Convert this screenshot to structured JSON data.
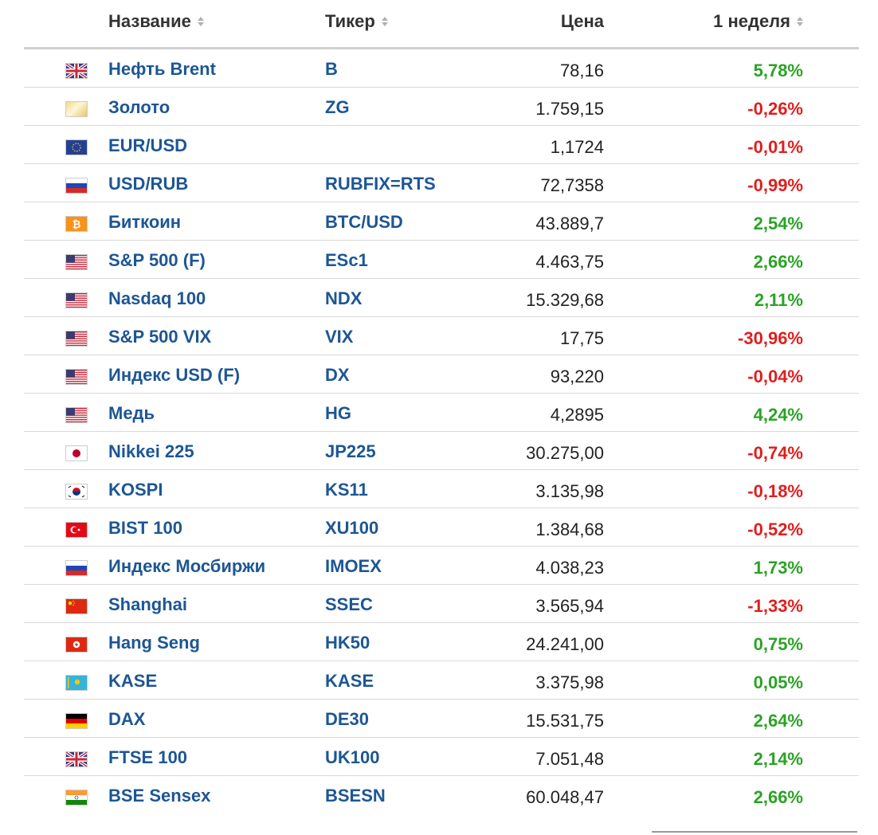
{
  "table": {
    "headers": {
      "name": "Название",
      "ticker": "Тикер",
      "price": "Цена",
      "week": "1 неделя"
    },
    "rows": [
      {
        "flag": "uk-flag-icon",
        "name": "Нефть Brent",
        "ticker": "B",
        "price": "78,16",
        "change": "5,78%",
        "dir": "pos"
      },
      {
        "flag": "gold-icon",
        "name": "Золото",
        "ticker": "ZG",
        "price": "1.759,15",
        "change": "-0,26%",
        "dir": "neg"
      },
      {
        "flag": "eu-flag-icon",
        "name": "EUR/USD",
        "ticker": "",
        "price": "1,1724",
        "change": "-0,01%",
        "dir": "neg"
      },
      {
        "flag": "ru-flag-icon",
        "name": "USD/RUB",
        "ticker": "RUBFIX=RTS",
        "price": "72,7358",
        "change": "-0,99%",
        "dir": "neg"
      },
      {
        "flag": "bitcoin-icon",
        "name": "Биткоин",
        "ticker": "BTC/USD",
        "price": "43.889,7",
        "change": "2,54%",
        "dir": "pos"
      },
      {
        "flag": "us-flag-icon",
        "name": "S&P 500 (F)",
        "ticker": "ESc1",
        "price": "4.463,75",
        "change": "2,66%",
        "dir": "pos"
      },
      {
        "flag": "us-flag-icon",
        "name": "Nasdaq 100",
        "ticker": "NDX",
        "price": "15.329,68",
        "change": "2,11%",
        "dir": "pos"
      },
      {
        "flag": "us-flag-icon",
        "name": "S&P 500 VIX",
        "ticker": "VIX",
        "price": "17,75",
        "change": "-30,96%",
        "dir": "neg"
      },
      {
        "flag": "us-flag-icon",
        "name": "Индекс USD (F)",
        "ticker": "DX",
        "price": "93,220",
        "change": "-0,04%",
        "dir": "neg"
      },
      {
        "flag": "us-flag-icon",
        "name": "Медь",
        "ticker": "HG",
        "price": "4,2895",
        "change": "4,24%",
        "dir": "pos"
      },
      {
        "flag": "jp-flag-icon",
        "name": "Nikkei 225",
        "ticker": "JP225",
        "price": "30.275,00",
        "change": "-0,74%",
        "dir": "neg"
      },
      {
        "flag": "kr-flag-icon",
        "name": "KOSPI",
        "ticker": "KS11",
        "price": "3.135,98",
        "change": "-0,18%",
        "dir": "neg"
      },
      {
        "flag": "tr-flag-icon",
        "name": "BIST 100",
        "ticker": "XU100",
        "price": "1.384,68",
        "change": "-0,52%",
        "dir": "neg"
      },
      {
        "flag": "ru-flag-icon",
        "name": "Индекс Мосбиржи",
        "ticker": "IMOEX",
        "price": "4.038,23",
        "change": "1,73%",
        "dir": "pos"
      },
      {
        "flag": "cn-flag-icon",
        "name": "Shanghai",
        "ticker": "SSEC",
        "price": "3.565,94",
        "change": "-1,33%",
        "dir": "neg"
      },
      {
        "flag": "hk-flag-icon",
        "name": "Hang Seng",
        "ticker": "HK50",
        "price": "24.241,00",
        "change": "0,75%",
        "dir": "pos"
      },
      {
        "flag": "kz-flag-icon",
        "name": "KASE",
        "ticker": "KASE",
        "price": "3.375,98",
        "change": "0,05%",
        "dir": "pos"
      },
      {
        "flag": "de-flag-icon",
        "name": "DAX",
        "ticker": "DE30",
        "price": "15.531,75",
        "change": "2,64%",
        "dir": "pos"
      },
      {
        "flag": "uk-flag-icon",
        "name": "FTSE 100",
        "ticker": "UK100",
        "price": "7.051,48",
        "change": "2,14%",
        "dir": "pos"
      },
      {
        "flag": "in-flag-icon",
        "name": "BSE Sensex",
        "ticker": "BSESN",
        "price": "60.048,47",
        "change": "2,66%",
        "dir": "pos"
      }
    ]
  },
  "colors": {
    "positive": "#2aa325",
    "negative": "#e11e1e",
    "link": "#1d5694"
  }
}
